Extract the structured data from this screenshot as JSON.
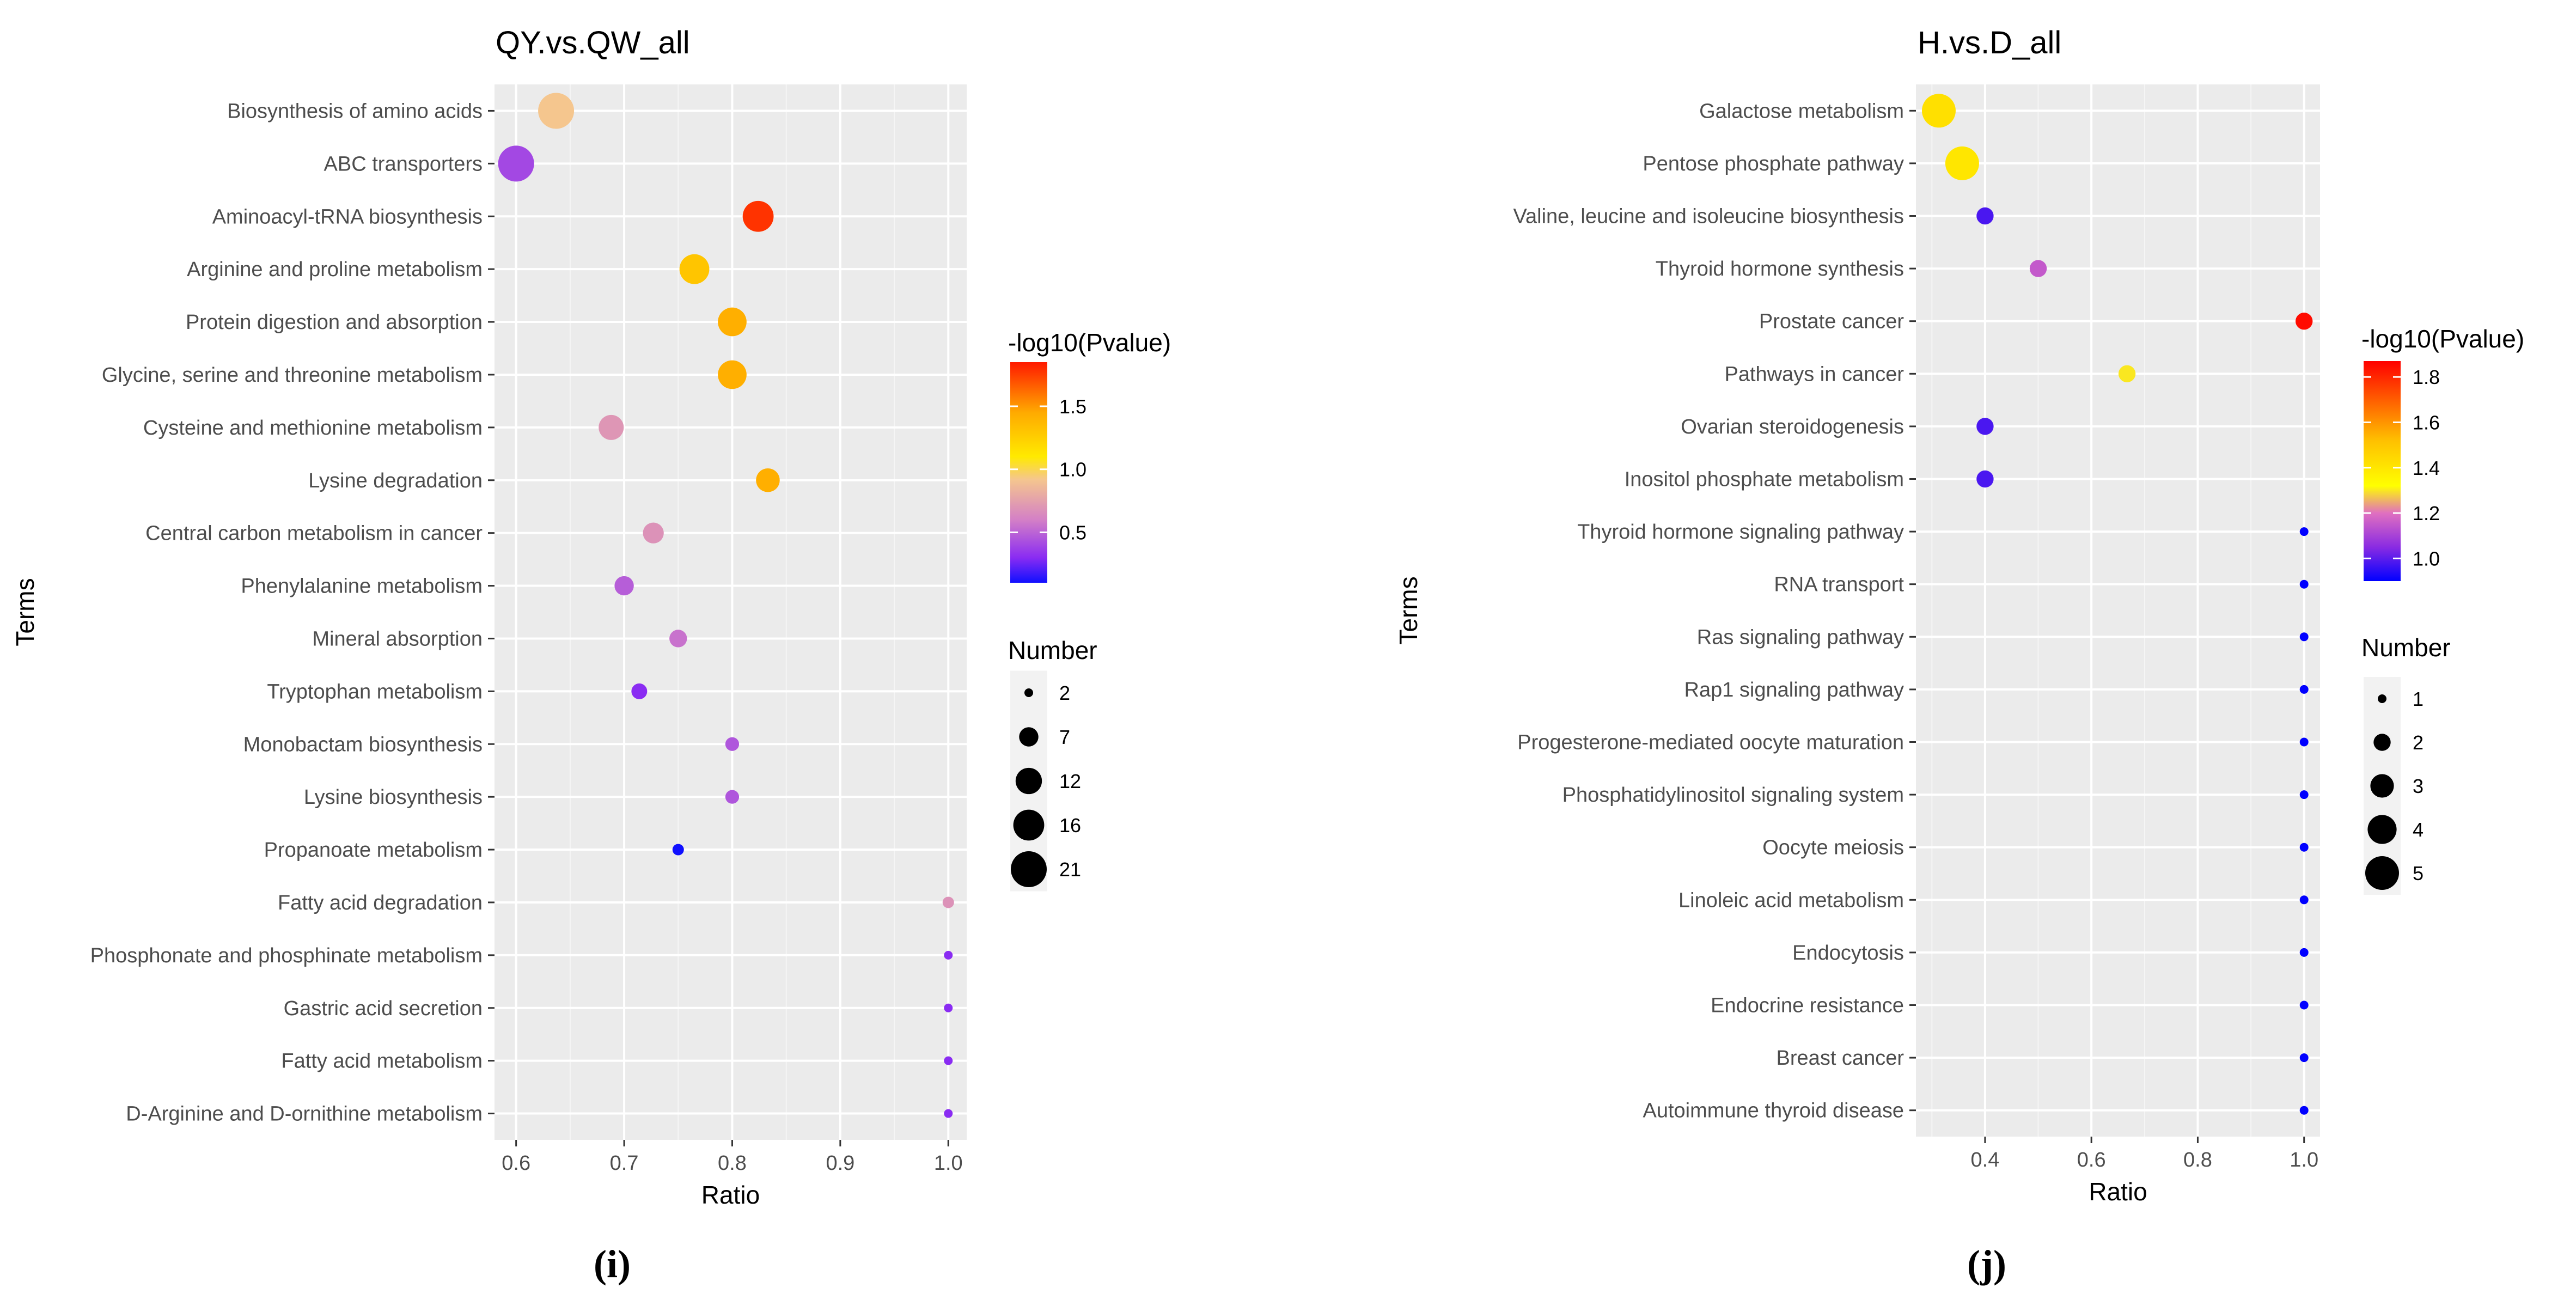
{
  "chart_data": [
    {
      "type": "scatter",
      "title": "QY.vs.QW_all",
      "xlabel": "Ratio",
      "ylabel": "Terms",
      "xlim": [
        0.58,
        1.017
      ],
      "xticks": [
        0.6,
        0.7,
        0.8,
        0.9,
        1.0
      ],
      "xtick_labels": [
        "0.6",
        "0.7",
        "0.8",
        "0.9",
        "1.0"
      ],
      "caption": "(i)",
      "terms": [
        "Biosynthesis of amino acids",
        "ABC transporters",
        "Aminoacyl-tRNA biosynthesis",
        "Arginine and proline metabolism",
        "Protein digestion and absorption",
        "Glycine, serine and threonine metabolism",
        "Cysteine and methionine metabolism",
        "Lysine degradation",
        "Central carbon metabolism in cancer",
        "Phenylalanine metabolism",
        "Mineral absorption",
        "Tryptophan metabolism",
        "Monobactam biosynthesis",
        "Lysine biosynthesis",
        "Propanoate metabolism",
        "Fatty acid degradation",
        "Phosphonate and phosphinate metabolism",
        "Gastric acid secretion",
        "Fatty acid metabolism",
        "D-Arginine and D-ornithine metabolism"
      ],
      "points": [
        {
          "term": "Biosynthesis of amino acids",
          "ratio": 0.637,
          "number": 21,
          "neglog10p": 0.92
        },
        {
          "term": "ABC transporters",
          "ratio": 0.6,
          "number": 21,
          "neglog10p": 0.4
        },
        {
          "term": "Aminoacyl-tRNA biosynthesis",
          "ratio": 0.824,
          "number": 16,
          "neglog10p": 1.78
        },
        {
          "term": "Arginine and proline metabolism",
          "ratio": 0.765,
          "number": 15,
          "neglog10p": 1.3
        },
        {
          "term": "Protein digestion and absorption",
          "ratio": 0.8,
          "number": 14,
          "neglog10p": 1.42
        },
        {
          "term": "Glycine, serine and threonine metabolism",
          "ratio": 0.8,
          "number": 14,
          "neglog10p": 1.42
        },
        {
          "term": "Cysteine and methionine metabolism",
          "ratio": 0.688,
          "number": 11,
          "neglog10p": 0.7
        },
        {
          "term": "Lysine degradation",
          "ratio": 0.833,
          "number": 10,
          "neglog10p": 1.42
        },
        {
          "term": "Central carbon metabolism in cancer",
          "ratio": 0.727,
          "number": 8,
          "neglog10p": 0.68
        },
        {
          "term": "Phenylalanine metabolism",
          "ratio": 0.7,
          "number": 7,
          "neglog10p": 0.48
        },
        {
          "term": "Mineral absorption",
          "ratio": 0.75,
          "number": 6,
          "neglog10p": 0.55
        },
        {
          "term": "Tryptophan metabolism",
          "ratio": 0.714,
          "number": 5,
          "neglog10p": 0.3
        },
        {
          "term": "Monobactam biosynthesis",
          "ratio": 0.8,
          "number": 4,
          "neglog10p": 0.45
        },
        {
          "term": "Lysine biosynthesis",
          "ratio": 0.8,
          "number": 4,
          "neglog10p": 0.45
        },
        {
          "term": "Propanoate metabolism",
          "ratio": 0.75,
          "number": 3,
          "neglog10p": 0.1
        },
        {
          "term": "Fatty acid degradation",
          "ratio": 1.0,
          "number": 3,
          "neglog10p": 0.68
        },
        {
          "term": "Phosphonate and phosphinate metabolism",
          "ratio": 1.0,
          "number": 2,
          "neglog10p": 0.3
        },
        {
          "term": "Gastric acid secretion",
          "ratio": 1.0,
          "number": 2,
          "neglog10p": 0.3
        },
        {
          "term": "Fatty acid metabolism",
          "ratio": 1.0,
          "number": 2,
          "neglog10p": 0.3
        },
        {
          "term": "D-Arginine and D-ornithine metabolism",
          "ratio": 1.0,
          "number": 2,
          "neglog10p": 0.3
        }
      ],
      "color_legend": {
        "title": "-log10(Pvalue)",
        "min": 0.1,
        "max": 1.85,
        "breaks": [
          0.5,
          1.0,
          1.5
        ],
        "break_labels": [
          "0.5",
          "1.0",
          "1.5"
        ],
        "stops": [
          {
            "v": 0.1,
            "color": "#1010ff"
          },
          {
            "v": 0.3,
            "color": "#8a2cf2"
          },
          {
            "v": 0.6,
            "color": "#d480c6"
          },
          {
            "v": 0.92,
            "color": "#f5c68e"
          },
          {
            "v": 1.1,
            "color": "#ffea00"
          },
          {
            "v": 1.45,
            "color": "#ffaa00"
          },
          {
            "v": 1.85,
            "color": "#ff1a00"
          }
        ]
      },
      "size_legend": {
        "title": "Number",
        "domain": [
          2,
          21
        ],
        "values": [
          2,
          7,
          12,
          16,
          21
        ],
        "labels": [
          "2",
          "7",
          "12",
          "16",
          "21"
        ]
      }
    },
    {
      "type": "scatter",
      "title": "H.vs.D_all",
      "xlabel": "Ratio",
      "ylabel": "Terms",
      "xlim": [
        0.27,
        1.03
      ],
      "xticks": [
        0.4,
        0.6,
        0.8,
        1.0
      ],
      "xtick_labels": [
        "0.4",
        "0.6",
        "0.8",
        "1.0"
      ],
      "caption": "(j)",
      "terms": [
        "Galactose metabolism",
        "Pentose phosphate pathway",
        "Valine, leucine and isoleucine biosynthesis",
        "Thyroid hormone synthesis",
        "Prostate cancer",
        "Pathways in cancer",
        "Ovarian steroidogenesis",
        "Inositol phosphate metabolism",
        "Thyroid hormone signaling pathway",
        "RNA transport",
        "Ras signaling pathway",
        "Rap1 signaling pathway",
        "Progesterone-mediated oocyte maturation",
        "Phosphatidylinositol signaling system",
        "Oocyte meiosis",
        "Linoleic acid metabolism",
        "Endocytosis",
        "Endocrine resistance",
        "Breast cancer",
        "Autoimmune thyroid disease"
      ],
      "points": [
        {
          "term": "Galactose metabolism",
          "ratio": 0.313,
          "number": 5,
          "neglog10p": 1.42
        },
        {
          "term": "Pentose phosphate pathway",
          "ratio": 0.357,
          "number": 5,
          "neglog10p": 1.4
        },
        {
          "term": "Valine, leucine and isoleucine biosynthesis",
          "ratio": 0.4,
          "number": 2,
          "neglog10p": 0.98
        },
        {
          "term": "Thyroid hormone synthesis",
          "ratio": 0.5,
          "number": 2,
          "neglog10p": 1.15
        },
        {
          "term": "Prostate cancer",
          "ratio": 1.0,
          "number": 2,
          "neglog10p": 1.85
        },
        {
          "term": "Pathways in cancer",
          "ratio": 0.667,
          "number": 2,
          "neglog10p": 1.3
        },
        {
          "term": "Ovarian steroidogenesis",
          "ratio": 0.4,
          "number": 2,
          "neglog10p": 0.98
        },
        {
          "term": "Inositol phosphate metabolism",
          "ratio": 0.4,
          "number": 2,
          "neglog10p": 0.98
        },
        {
          "term": "Thyroid hormone signaling pathway",
          "ratio": 1.0,
          "number": 1,
          "neglog10p": 0.9
        },
        {
          "term": "RNA transport",
          "ratio": 1.0,
          "number": 1,
          "neglog10p": 0.9
        },
        {
          "term": "Ras signaling pathway",
          "ratio": 1.0,
          "number": 1,
          "neglog10p": 0.9
        },
        {
          "term": "Rap1 signaling pathway",
          "ratio": 1.0,
          "number": 1,
          "neglog10p": 0.9
        },
        {
          "term": "Progesterone-mediated oocyte maturation",
          "ratio": 1.0,
          "number": 1,
          "neglog10p": 0.9
        },
        {
          "term": "Phosphatidylinositol signaling system",
          "ratio": 1.0,
          "number": 1,
          "neglog10p": 0.9
        },
        {
          "term": "Oocyte meiosis",
          "ratio": 1.0,
          "number": 1,
          "neglog10p": 0.9
        },
        {
          "term": "Linoleic acid metabolism",
          "ratio": 1.0,
          "number": 1,
          "neglog10p": 0.9
        },
        {
          "term": "Endocytosis",
          "ratio": 1.0,
          "number": 1,
          "neglog10p": 0.9
        },
        {
          "term": "Endocrine resistance",
          "ratio": 1.0,
          "number": 1,
          "neglog10p": 0.9
        },
        {
          "term": "Breast cancer",
          "ratio": 1.0,
          "number": 1,
          "neglog10p": 0.9
        },
        {
          "term": "Autoimmune thyroid disease",
          "ratio": 1.0,
          "number": 1,
          "neglog10p": 0.9
        }
      ],
      "color_legend": {
        "title": "-log10(Pvalue)",
        "min": 0.9,
        "max": 1.87,
        "breaks": [
          1.0,
          1.2,
          1.4,
          1.6,
          1.8
        ],
        "break_labels": [
          "1.0",
          "1.2",
          "1.4",
          "1.6",
          "1.8"
        ],
        "stops": [
          {
            "v": 0.9,
            "color": "#0000ff"
          },
          {
            "v": 1.05,
            "color": "#8a2be2"
          },
          {
            "v": 1.2,
            "color": "#e070c0"
          },
          {
            "v": 1.32,
            "color": "#ffff00"
          },
          {
            "v": 1.52,
            "color": "#ffc000"
          },
          {
            "v": 1.87,
            "color": "#ff0000"
          }
        ]
      },
      "size_legend": {
        "title": "Number",
        "domain": [
          1,
          5
        ],
        "values": [
          1,
          2,
          3,
          4,
          5
        ],
        "labels": [
          "1",
          "2",
          "3",
          "4",
          "5"
        ]
      }
    }
  ]
}
